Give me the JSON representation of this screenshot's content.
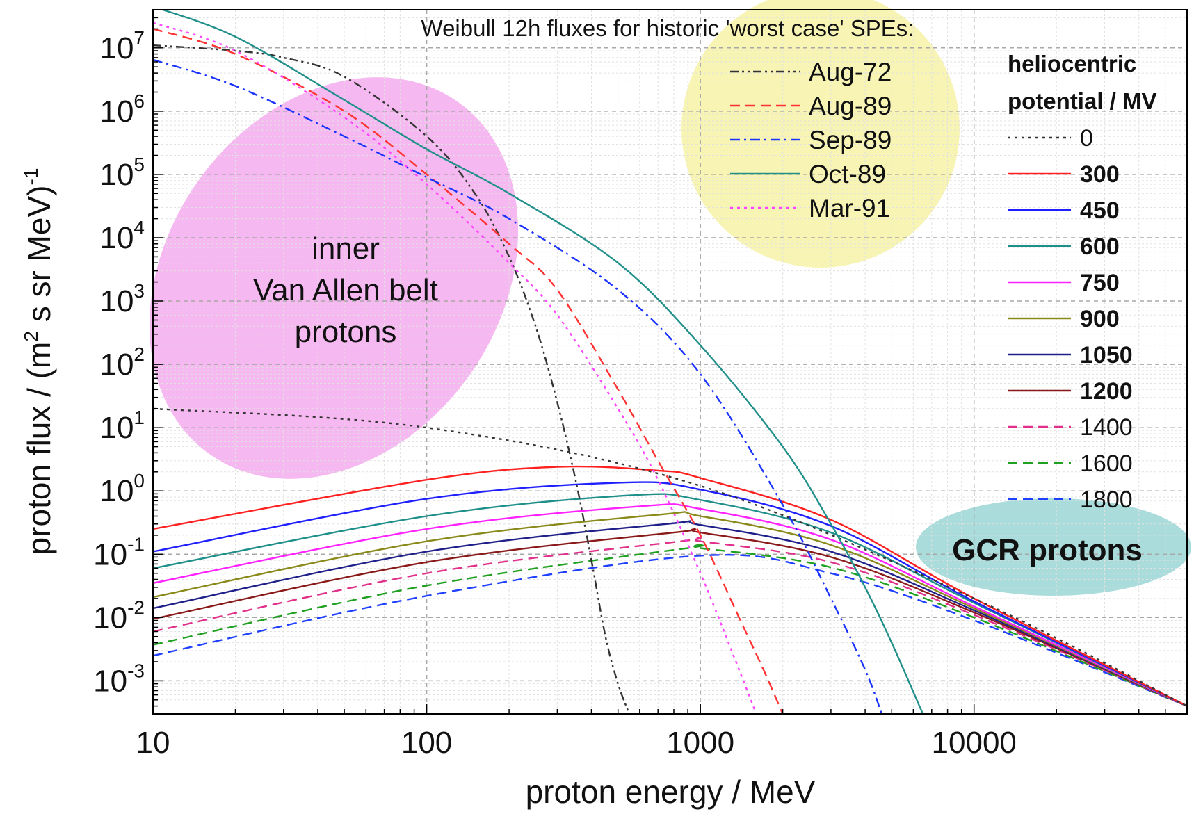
{
  "chart_data": {
    "type": "line",
    "title": "",
    "xlabel": "proton energy / MeV",
    "ylabel": "proton flux / (m² s sr MeV)⁻¹",
    "ylabel_parts": {
      "a": "proton flux / (m",
      "sup2": "2",
      "b": " s sr MeV)",
      "supm1": "-1"
    },
    "x_scale": "log",
    "y_scale": "log",
    "xlim": [
      10,
      60000
    ],
    "ylim": [
      0.0003,
      40000000
    ],
    "grid": true,
    "x_ticks": [
      {
        "value": 10,
        "label": "10"
      },
      {
        "value": 100,
        "label": "100"
      },
      {
        "value": 1000,
        "label": "1000"
      },
      {
        "value": 10000,
        "label": "10000"
      }
    ],
    "y_ticks": [
      {
        "value": 10000000,
        "base": "10",
        "exp": "7"
      },
      {
        "value": 1000000,
        "base": "10",
        "exp": "6"
      },
      {
        "value": 100000,
        "base": "10",
        "exp": "5"
      },
      {
        "value": 10000,
        "base": "10",
        "exp": "4"
      },
      {
        "value": 1000,
        "base": "10",
        "exp": "3"
      },
      {
        "value": 100,
        "base": "10",
        "exp": "2"
      },
      {
        "value": 10,
        "base": "10",
        "exp": "1"
      },
      {
        "value": 1,
        "base": "10",
        "exp": "0"
      },
      {
        "value": 0.1,
        "base": "10",
        "exp": "-1"
      },
      {
        "value": 0.01,
        "base": "10",
        "exp": "-2"
      },
      {
        "value": 0.001,
        "base": "10",
        "exp": "-3"
      }
    ],
    "annotations": {
      "spe_legend_title": "Weibull 12h fluxes for historic 'worst case' SPEs:",
      "gcr_legend_title_1": "heliocentric",
      "gcr_legend_title_2": "potential / MV",
      "van_allen_1": "inner",
      "van_allen_2": "Van Allen belt",
      "van_allen_3": "protons",
      "gcr_label": "GCR protons"
    },
    "highlight_colors": {
      "van_allen": "#f6b8f0",
      "spe": "#f7f4b4",
      "gcr": "#a9dcdb"
    },
    "spe_series": [
      {
        "name": "Aug-72",
        "color": "#333333",
        "dash": "dashdotdot",
        "x": [
          10,
          20,
          30,
          50,
          100,
          150,
          200,
          250,
          300,
          350,
          400,
          450,
          500,
          550
        ],
        "y": [
          11000000,
          9000000,
          7000000,
          3500000,
          400000,
          50000,
          5000,
          400,
          25,
          1.5,
          0.08,
          0.005,
          0.0009,
          0.0003
        ]
      },
      {
        "name": "Aug-89",
        "color": "#ff3333",
        "dash": "dash",
        "x": [
          10,
          20,
          50,
          100,
          200,
          300,
          500,
          700,
          1000,
          1400,
          1700,
          2000
        ],
        "y": [
          20000000,
          8000000,
          1000000,
          100000,
          8000,
          1500,
          40,
          3,
          0.2,
          0.009,
          0.0015,
          0.0003
        ]
      },
      {
        "name": "Sep-89",
        "color": "#1a33ff",
        "dash": "dashdot",
        "x": [
          10,
          20,
          50,
          100,
          200,
          500,
          1000,
          2000,
          3000,
          4000,
          4600
        ],
        "y": [
          6500000,
          2500000,
          400000,
          90000,
          20000,
          1500,
          70,
          0.6,
          0.02,
          0.0015,
          0.0003
        ]
      },
      {
        "name": "Oct-89",
        "color": "#22908a",
        "dash": "solid",
        "x": [
          10,
          20,
          50,
          100,
          200,
          500,
          1000,
          2000,
          3000,
          4000,
          5000,
          6500
        ],
        "y": [
          45000000,
          15000000,
          1500000,
          250000,
          50000,
          4000,
          200,
          5,
          0.3,
          0.03,
          0.004,
          0.0003
        ]
      },
      {
        "name": "Mar-91",
        "color": "#ff44ff",
        "dash": "dot",
        "x": [
          10,
          20,
          50,
          100,
          200,
          300,
          500,
          700,
          1000,
          1300,
          1600
        ],
        "y": [
          25000000,
          9000000,
          800000,
          70000,
          4000,
          600,
          20,
          1.5,
          0.05,
          0.003,
          0.0003
        ]
      }
    ],
    "gcr_series": [
      {
        "name": "0",
        "bold": false,
        "color": "#333333",
        "dash": "dot",
        "x": [
          10,
          100,
          1000,
          10000,
          60000
        ],
        "y": [
          20,
          10,
          1.2,
          0.02,
          0.0004
        ]
      },
      {
        "name": "300",
        "bold": true,
        "color": "#ff2020",
        "dash": "solid",
        "x": [
          10,
          100,
          300,
          700,
          1000,
          3000,
          10000,
          60000
        ],
        "y": [
          0.25,
          1.5,
          2.4,
          2.1,
          1.6,
          0.35,
          0.02,
          0.0004
        ]
      },
      {
        "name": "450",
        "bold": true,
        "color": "#2020ff",
        "dash": "solid",
        "x": [
          10,
          100,
          500,
          1000,
          3000,
          10000,
          60000
        ],
        "y": [
          0.11,
          0.75,
          1.35,
          1.05,
          0.28,
          0.018,
          0.0004
        ]
      },
      {
        "name": "600",
        "bold": true,
        "color": "#1f8f8a",
        "dash": "solid",
        "x": [
          10,
          100,
          550,
          1000,
          3000,
          10000,
          60000
        ],
        "y": [
          0.06,
          0.4,
          0.85,
          0.72,
          0.22,
          0.017,
          0.0004
        ]
      },
      {
        "name": "750",
        "bold": true,
        "color": "#ff22ff",
        "dash": "solid",
        "x": [
          10,
          100,
          600,
          1000,
          3000,
          10000,
          60000
        ],
        "y": [
          0.035,
          0.25,
          0.57,
          0.52,
          0.17,
          0.015,
          0.0004
        ]
      },
      {
        "name": "900",
        "bold": true,
        "color": "#8a8a1a",
        "dash": "solid",
        "x": [
          10,
          100,
          700,
          1000,
          3000,
          10000,
          60000
        ],
        "y": [
          0.021,
          0.16,
          0.42,
          0.4,
          0.14,
          0.014,
          0.0004
        ]
      },
      {
        "name": "1050",
        "bold": true,
        "color": "#20208a",
        "dash": "solid",
        "x": [
          10,
          100,
          750,
          1000,
          3000,
          10000,
          60000
        ],
        "y": [
          0.014,
          0.11,
          0.3,
          0.29,
          0.11,
          0.013,
          0.0004
        ]
      },
      {
        "name": "1200",
        "bold": true,
        "color": "#8a1a1a",
        "dash": "solid",
        "x": [
          10,
          100,
          800,
          1000,
          3000,
          10000,
          60000
        ],
        "y": [
          0.0095,
          0.075,
          0.22,
          0.22,
          0.09,
          0.012,
          0.0004
        ]
      },
      {
        "name": "1400",
        "bold": false,
        "color": "#e0308a",
        "dash": "dash",
        "x": [
          10,
          100,
          850,
          1000,
          3000,
          10000,
          60000
        ],
        "y": [
          0.006,
          0.05,
          0.16,
          0.16,
          0.075,
          0.011,
          0.0004
        ]
      },
      {
        "name": "1600",
        "bold": false,
        "color": "#20a020",
        "dash": "dash",
        "x": [
          10,
          100,
          900,
          1000,
          3000,
          10000,
          60000
        ],
        "y": [
          0.0037,
          0.032,
          0.125,
          0.125,
          0.062,
          0.01,
          0.0004
        ]
      },
      {
        "name": "1800",
        "bold": false,
        "color": "#2040ff",
        "dash": "dash",
        "x": [
          10,
          100,
          1000,
          3000,
          10000,
          60000
        ],
        "y": [
          0.0025,
          0.022,
          0.095,
          0.05,
          0.009,
          0.0004
        ]
      }
    ]
  }
}
